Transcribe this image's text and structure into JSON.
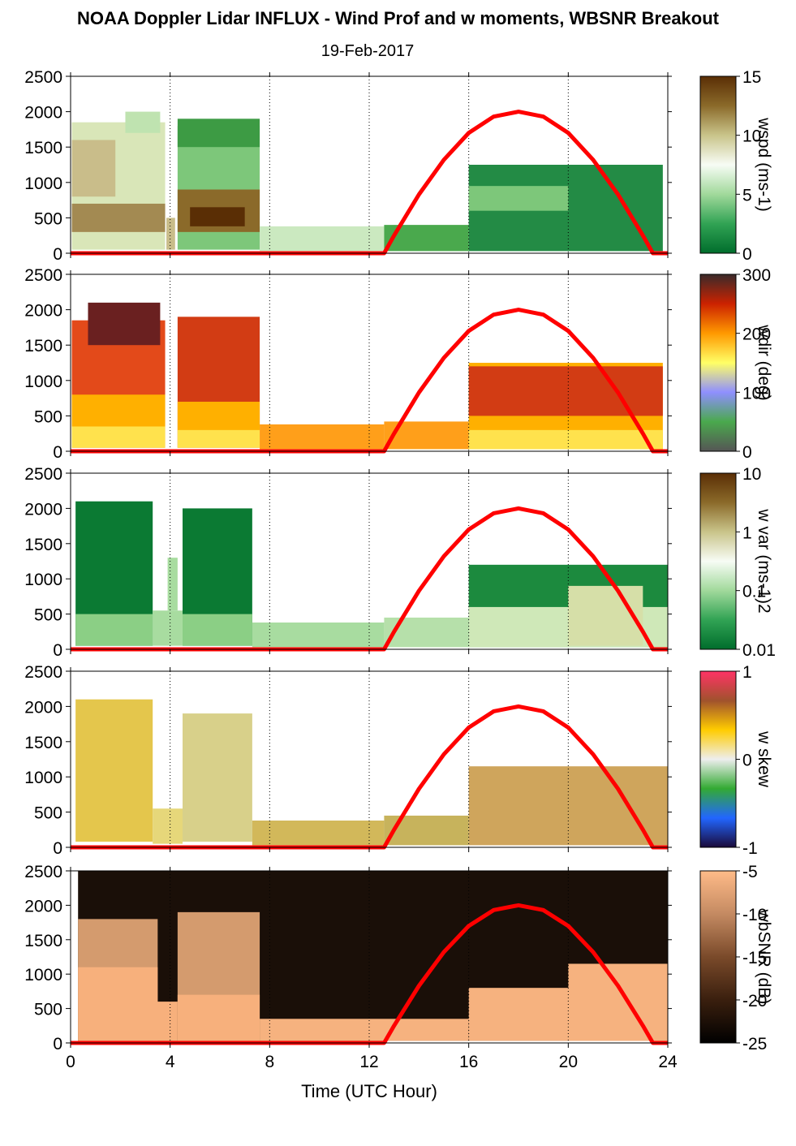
{
  "title": "NOAA Doppler Lidar INFLUX - Wind Prof and w moments, WBSNR Breakout",
  "subtitle": "19-Feb-2017",
  "chart_data": {
    "type": "heatmap",
    "xlabel": "Time (UTC Hour)",
    "xlim": [
      0,
      24
    ],
    "xticks": [
      "0",
      "4",
      "8",
      "12",
      "16",
      "20",
      "24"
    ],
    "x_gridlines": [
      4,
      8,
      12,
      16,
      20,
      24
    ],
    "ylim": [
      0,
      2500
    ],
    "yticks": [
      "0",
      "500",
      "1000",
      "1500",
      "2000",
      "2500"
    ],
    "solar_curve": {
      "color": "#ff0000",
      "points": [
        [
          0,
          0
        ],
        [
          12.6,
          0
        ],
        [
          13,
          250
        ],
        [
          14,
          830
        ],
        [
          15,
          1320
        ],
        [
          16,
          1700
        ],
        [
          17,
          1930
        ],
        [
          18,
          2000
        ],
        [
          19,
          1930
        ],
        [
          20,
          1700
        ],
        [
          21,
          1320
        ],
        [
          22,
          830
        ],
        [
          23,
          250
        ],
        [
          23.4,
          0
        ],
        [
          24,
          0
        ]
      ]
    },
    "panels": [
      {
        "label": "wspd (ms-1)",
        "colorbar_ticks": [
          "0",
          "5",
          "10",
          "15"
        ],
        "colormap": [
          "#006d2c",
          "#31a354",
          "#a1d99b",
          "#f7fcf5",
          "#c9c48a",
          "#8b6a2a",
          "#5a2e05"
        ],
        "regions": [
          {
            "x": [
              0.05,
              3.8
            ],
            "y": [
              50,
              1850
            ],
            "color": "#d9e6b8"
          },
          {
            "x": [
              0.05,
              3.8
            ],
            "y": [
              300,
              700
            ],
            "color": "#a38a52"
          },
          {
            "x": [
              0.05,
              1.8
            ],
            "y": [
              800,
              1600
            ],
            "color": "#c9bd8a"
          },
          {
            "x": [
              2.2,
              3.6
            ],
            "y": [
              1700,
              2000
            ],
            "color": "#bfe3b0"
          },
          {
            "x": [
              4.3,
              7.6
            ],
            "y": [
              50,
              1800
            ],
            "color": "#7dc77a"
          },
          {
            "x": [
              4.3,
              7.6
            ],
            "y": [
              300,
              900
            ],
            "color": "#8b6a2a"
          },
          {
            "x": [
              4.8,
              7.0
            ],
            "y": [
              380,
              650
            ],
            "color": "#5a2e05"
          },
          {
            "x": [
              4.3,
              7.6
            ],
            "y": [
              1500,
              1900
            ],
            "color": "#3d9b44"
          },
          {
            "x": [
              3.85,
              4.2
            ],
            "y": [
              50,
              500
            ],
            "color": "#c9bd8a"
          },
          {
            "x": [
              7.6,
              12.6
            ],
            "y": [
              30,
              380
            ],
            "color": "#cbe9c0"
          },
          {
            "x": [
              12.6,
              16.0
            ],
            "y": [
              30,
              400
            ],
            "color": "#4aa94d"
          },
          {
            "x": [
              16.0,
              23.8
            ],
            "y": [
              30,
              1250
            ],
            "color": "#238b45"
          },
          {
            "x": [
              16.0,
              20.0
            ],
            "y": [
              600,
              950
            ],
            "color": "#7dc77a"
          }
        ]
      },
      {
        "label": "wdir (deg)",
        "colorbar_ticks": [
          "0",
          "100",
          "200",
          "300"
        ],
        "colormap": [
          "#555555",
          "#4aa94d",
          "#8f8fff",
          "#ffff66",
          "#ff9900",
          "#cc2200",
          "#3a2a2a"
        ],
        "regions": [
          {
            "x": [
              0.05,
              3.8
            ],
            "y": [
              50,
              1850
            ],
            "color": "#e34a1a"
          },
          {
            "x": [
              0.05,
              3.8
            ],
            "y": [
              50,
              800
            ],
            "color": "#ffb000"
          },
          {
            "x": [
              0.05,
              3.8
            ],
            "y": [
              50,
              350
            ],
            "color": "#ffe24d"
          },
          {
            "x": [
              0.7,
              3.6
            ],
            "y": [
              1500,
              2100
            ],
            "color": "#6a2020"
          },
          {
            "x": [
              4.3,
              7.6
            ],
            "y": [
              50,
              1900
            ],
            "color": "#d23c14"
          },
          {
            "x": [
              4.3,
              7.6
            ],
            "y": [
              50,
              700
            ],
            "color": "#ffb000"
          },
          {
            "x": [
              4.3,
              7.6
            ],
            "y": [
              50,
              300
            ],
            "color": "#ffe24d"
          },
          {
            "x": [
              7.6,
              12.6
            ],
            "y": [
              30,
              380
            ],
            "color": "#ff9f1a"
          },
          {
            "x": [
              12.6,
              16.0
            ],
            "y": [
              30,
              420
            ],
            "color": "#ff9f1a"
          },
          {
            "x": [
              16.0,
              23.8
            ],
            "y": [
              30,
              1250
            ],
            "color": "#ffb000"
          },
          {
            "x": [
              16.0,
              23.8
            ],
            "y": [
              500,
              1200
            ],
            "color": "#d23c14"
          },
          {
            "x": [
              16.0,
              23.8
            ],
            "y": [
              30,
              300
            ],
            "color": "#ffe24d"
          }
        ]
      },
      {
        "label": "w var (ms-1)2",
        "colorbar_ticks": [
          "0.01",
          "0.1",
          "1",
          "10"
        ],
        "colormap": [
          "#006d2c",
          "#31a354",
          "#a1d99b",
          "#f7fcf5",
          "#c9c48a",
          "#8b6a2a",
          "#5a2e05"
        ],
        "regions": [
          {
            "x": [
              0.2,
              3.3
            ],
            "y": [
              50,
              2100
            ],
            "color": "#0b7a33"
          },
          {
            "x": [
              0.2,
              3.3
            ],
            "y": [
              50,
              500
            ],
            "color": "#8bcf85"
          },
          {
            "x": [
              4.5,
              7.3
            ],
            "y": [
              50,
              2000
            ],
            "color": "#0b7a33"
          },
          {
            "x": [
              4.5,
              7.3
            ],
            "y": [
              50,
              500
            ],
            "color": "#8bcf85"
          },
          {
            "x": [
              3.3,
              4.5
            ],
            "y": [
              50,
              550
            ],
            "color": "#a8dca0"
          },
          {
            "x": [
              3.9,
              4.3
            ],
            "y": [
              550,
              1300
            ],
            "color": "#a8dca0"
          },
          {
            "x": [
              7.3,
              12.6
            ],
            "y": [
              30,
              380
            ],
            "color": "#a8dca0"
          },
          {
            "x": [
              12.6,
              16.0
            ],
            "y": [
              30,
              450
            ],
            "color": "#b6e0aa"
          },
          {
            "x": [
              16.0,
              24.0
            ],
            "y": [
              30,
              1200
            ],
            "color": "#1c8a3e"
          },
          {
            "x": [
              16.0,
              24.0
            ],
            "y": [
              30,
              600
            ],
            "color": "#cfe8b8"
          },
          {
            "x": [
              20.0,
              23.0
            ],
            "y": [
              50,
              900
            ],
            "color": "#d6dfa8"
          }
        ]
      },
      {
        "label": "w skew",
        "colorbar_ticks": [
          "-1",
          "0",
          "1"
        ],
        "colormap": [
          "#1a0a3a",
          "#2266ff",
          "#33aa33",
          "#eeeeee",
          "#ffcc00",
          "#a0522d",
          "#ff3366"
        ],
        "regions": [
          {
            "x": [
              0.2,
              3.3
            ],
            "y": [
              80,
              2100
            ],
            "color": "#e4c64c"
          },
          {
            "x": [
              4.5,
              7.3
            ],
            "y": [
              80,
              1900
            ],
            "color": "#d8d08a"
          },
          {
            "x": [
              3.3,
              4.5
            ],
            "y": [
              50,
              550
            ],
            "color": "#e6d77a"
          },
          {
            "x": [
              7.3,
              12.6
            ],
            "y": [
              30,
              380
            ],
            "color": "#d2b85a"
          },
          {
            "x": [
              12.6,
              16.0
            ],
            "y": [
              30,
              450
            ],
            "color": "#c7b35c"
          },
          {
            "x": [
              16.0,
              24.0
            ],
            "y": [
              30,
              1150
            ],
            "color": "#cfa55c"
          }
        ]
      },
      {
        "label": "wbSNR (dB)",
        "colorbar_ticks": [
          "-25",
          "-20",
          "-15",
          "-10",
          "-5"
        ],
        "colormap": [
          "#000000",
          "#3a1f0e",
          "#7a4a2a",
          "#c48a62",
          "#ffbb88"
        ],
        "regions": [
          {
            "x": [
              0.3,
              24.0
            ],
            "y": [
              30,
              2500
            ],
            "color": "#1a0f08"
          },
          {
            "x": [
              0.3,
              3.5
            ],
            "y": [
              30,
              1800
            ],
            "color": "#d49b6e"
          },
          {
            "x": [
              0.3,
              3.5
            ],
            "y": [
              30,
              1100
            ],
            "color": "#f7b07c"
          },
          {
            "x": [
              4.3,
              7.6
            ],
            "y": [
              30,
              1900
            ],
            "color": "#d49b6e"
          },
          {
            "x": [
              4.3,
              7.6
            ],
            "y": [
              30,
              700
            ],
            "color": "#f7b07c"
          },
          {
            "x": [
              3.3,
              4.3
            ],
            "y": [
              30,
              600
            ],
            "color": "#f7b07c"
          },
          {
            "x": [
              7.6,
              16.0
            ],
            "y": [
              30,
              350
            ],
            "color": "#f6b27f"
          },
          {
            "x": [
              16.0,
              24.0
            ],
            "y": [
              30,
              800
            ],
            "color": "#f6b27f"
          },
          {
            "x": [
              20.0,
              24.0
            ],
            "y": [
              30,
              1150
            ],
            "color": "#f6b27f"
          }
        ]
      }
    ]
  }
}
